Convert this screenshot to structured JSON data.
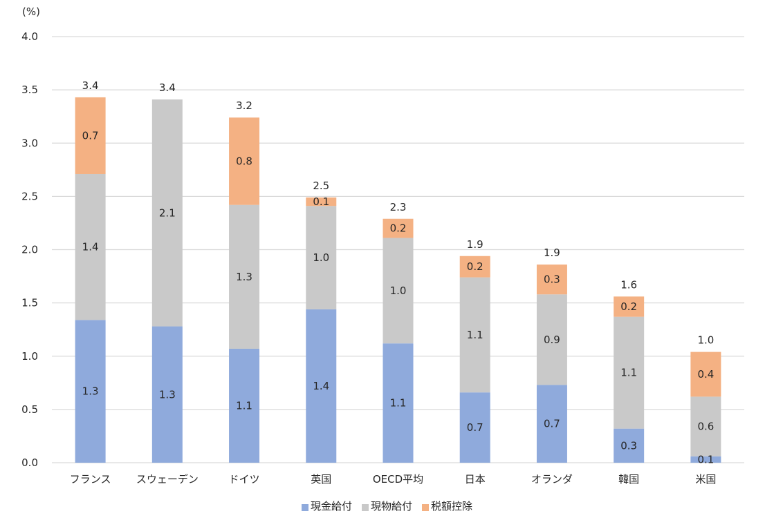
{
  "chart_data": {
    "type": "bar",
    "stacked": true,
    "title": "",
    "unit_label": "(%)",
    "xlabel": "",
    "ylabel": "(%)",
    "ylim": [
      0,
      4.0
    ],
    "yticks": [
      0.0,
      0.5,
      1.0,
      1.5,
      2.0,
      2.5,
      3.0,
      3.5,
      4.0
    ],
    "ytick_labels": [
      "0.0",
      "0.5",
      "1.0",
      "1.5",
      "2.0",
      "2.5",
      "3.0",
      "3.5",
      "4.0"
    ],
    "grid": true,
    "legend_position": "bottom",
    "categories": [
      "フランス",
      "スウェーデン",
      "ドイツ",
      "英国",
      "OECD平均",
      "日本",
      "オランダ",
      "韓国",
      "米国"
    ],
    "series": [
      {
        "name": "現金給付",
        "color": "#8FAADC",
        "values": [
          1.34,
          1.28,
          1.07,
          1.44,
          1.12,
          0.66,
          0.73,
          0.32,
          0.06
        ],
        "labels": [
          "1.3",
          "1.3",
          "1.1",
          "1.4",
          "1.1",
          "0.7",
          "0.7",
          "0.3",
          "0.1"
        ]
      },
      {
        "name": "現物給付",
        "color": "#C9C9C9",
        "values": [
          1.37,
          2.13,
          1.35,
          0.97,
          0.99,
          1.08,
          0.85,
          1.05,
          0.56
        ],
        "labels": [
          "1.4",
          "2.1",
          "1.3",
          "1.0",
          "1.0",
          "1.1",
          "0.9",
          "1.1",
          "0.6"
        ]
      },
      {
        "name": "税額控除",
        "color": "#F4B183",
        "values": [
          0.72,
          0.0,
          0.82,
          0.08,
          0.18,
          0.2,
          0.28,
          0.19,
          0.42
        ],
        "labels": [
          "0.7",
          "",
          "0.8",
          "0.1",
          "0.2",
          "0.2",
          "0.3",
          "0.2",
          "0.4"
        ]
      }
    ],
    "totals": [
      3.4,
      3.4,
      3.2,
      2.5,
      2.3,
      1.9,
      1.9,
      1.6,
      1.0
    ],
    "total_labels": [
      "3.4",
      "3.4",
      "3.2",
      "2.5",
      "2.3",
      "1.9",
      "1.9",
      "1.6",
      "1.0"
    ]
  },
  "legend": [
    {
      "name": "現金給付",
      "color": "#8FAADC"
    },
    {
      "name": "現物給付",
      "color": "#C9C9C9"
    },
    {
      "name": "税額控除",
      "color": "#F4B183"
    }
  ]
}
